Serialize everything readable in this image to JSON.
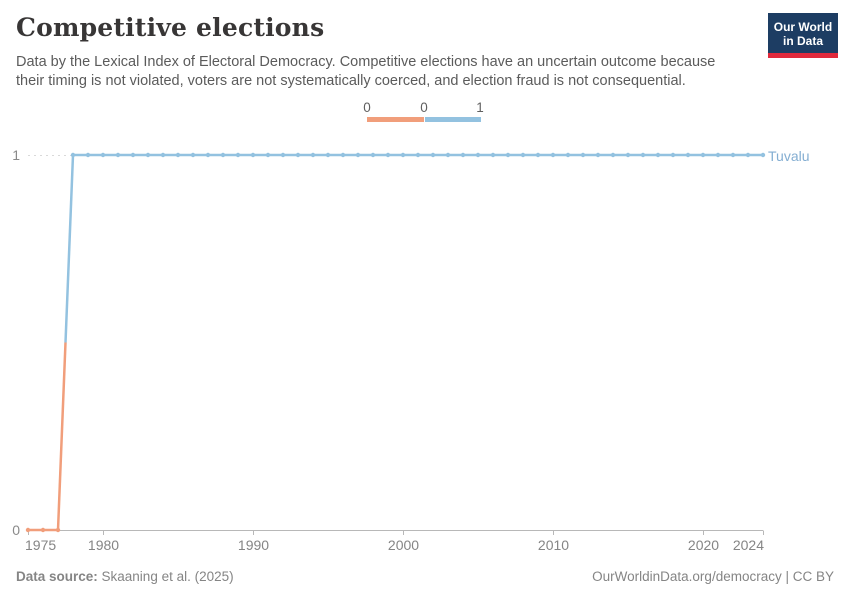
{
  "header": {
    "title": "Competitive elections",
    "subtitle_line1": "Data by the Lexical Index of Electoral Democracy. Competitive elections have an uncertain outcome because",
    "subtitle_line2": "their timing is not violated, voters are not systematically coerced, and election fraud is not consequential."
  },
  "logo": {
    "line1": "Our World",
    "line2": "in Data"
  },
  "footer": {
    "source_label": "Data source:",
    "source_value": " Skaaning et al. (2025)",
    "link": "OurWorldinData.org/democracy",
    "divider": " | ",
    "license": "CC BY"
  },
  "chart_data": {
    "type": "line",
    "title": "Competitive elections",
    "entity": "Tuvalu",
    "xlabel": "",
    "ylabel": "",
    "xlim": [
      1975,
      2024
    ],
    "ylim": [
      0,
      1
    ],
    "x_ticks": [
      1975,
      1980,
      1990,
      2000,
      2010,
      2020,
      2024
    ],
    "y_ticks": [
      0,
      1
    ],
    "grid": "dashed-horizontal-at-1",
    "legend_position": "top-center",
    "legend": {
      "labels": [
        "0",
        "0",
        "1"
      ]
    },
    "value_colors": {
      "0": "#f19e7b",
      "1": "#93c2e0"
    },
    "series_label_color": "#84aed2",
    "axis_color": "#b8b8b8",
    "tick_label_color": "#8a8a8a",
    "x": [
      1975,
      1976,
      1977,
      1978,
      1979,
      1980,
      1981,
      1982,
      1983,
      1984,
      1985,
      1986,
      1987,
      1988,
      1989,
      1990,
      1991,
      1992,
      1993,
      1994,
      1995,
      1996,
      1997,
      1998,
      1999,
      2000,
      2001,
      2002,
      2003,
      2004,
      2005,
      2006,
      2007,
      2008,
      2009,
      2010,
      2011,
      2012,
      2013,
      2014,
      2015,
      2016,
      2017,
      2018,
      2019,
      2020,
      2021,
      2022,
      2023,
      2024
    ],
    "series": [
      {
        "name": "Tuvalu",
        "values": [
          0,
          0,
          0,
          1,
          1,
          1,
          1,
          1,
          1,
          1,
          1,
          1,
          1,
          1,
          1,
          1,
          1,
          1,
          1,
          1,
          1,
          1,
          1,
          1,
          1,
          1,
          1,
          1,
          1,
          1,
          1,
          1,
          1,
          1,
          1,
          1,
          1,
          1,
          1,
          1,
          1,
          1,
          1,
          1,
          1,
          1,
          1,
          1,
          1,
          1
        ]
      }
    ]
  }
}
